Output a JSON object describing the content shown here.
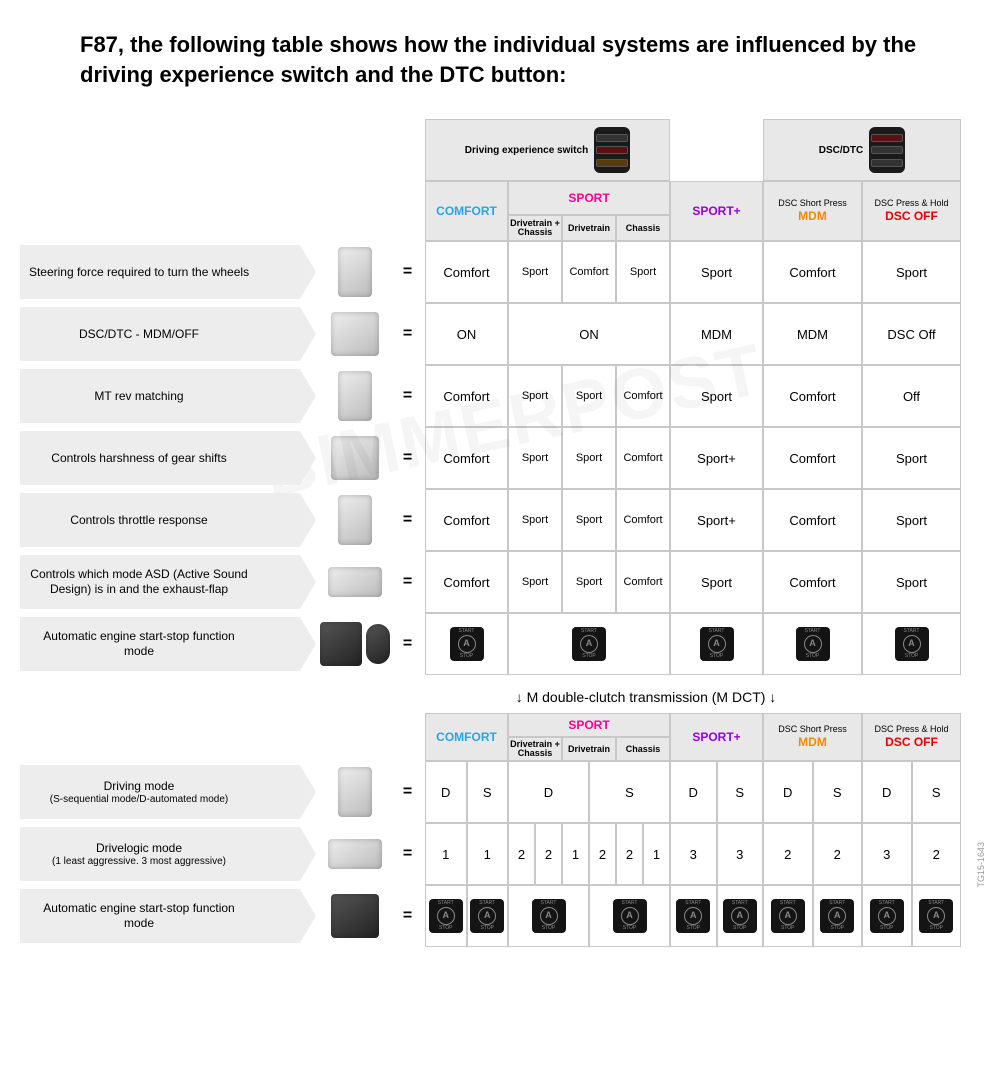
{
  "title": "F87, the following table shows how the individual systems are influenced by the driving experience switch and the DTC button:",
  "headers": {
    "switch1": "Driving experience switch",
    "switch2": "DSC/DTC",
    "comfort": "COMFORT",
    "sport": "SPORT",
    "sportplus": "SPORT+",
    "mdm_sup": "DSC Short Press",
    "mdm": "MDM",
    "dscoff_sup": "DSC Press & Hold",
    "dscoff": "DSC OFF",
    "sub_dc": "Drivetrain + Chassis",
    "sub_d": "Drivetrain",
    "sub_c": "Chassis"
  },
  "colors": {
    "comfort": "#2aa3e8",
    "sport": "#ff0095",
    "sportplus": "#9a00d8",
    "mdm": "#f08a00",
    "dscoff": "#e80000"
  },
  "rows1": [
    {
      "label": "Steering force required to turn the wheels",
      "cells": {
        "comfort": "Comfort",
        "s1": "Sport",
        "s2": "Comfort",
        "s3": "Sport",
        "sportplus": "Sport",
        "mdm": "Comfort",
        "dscoff": "Sport"
      }
    },
    {
      "label": "DSC/DTC - MDM/OFF",
      "cells": {
        "comfort": "ON",
        "sport_merged": "ON",
        "sportplus": "MDM",
        "mdm": "MDM",
        "dscoff": "DSC Off"
      }
    },
    {
      "label": "MT rev matching",
      "cells": {
        "comfort": "Comfort",
        "s1": "Sport",
        "s2": "Sport",
        "s3": "Comfort",
        "sportplus": "Sport",
        "mdm": "Comfort",
        "dscoff": "Off"
      }
    },
    {
      "label": "Controls harshness of gear shifts",
      "cells": {
        "comfort": "Comfort",
        "s1": "Sport",
        "s2": "Sport",
        "s3": "Comfort",
        "sportplus": "Sport+",
        "mdm": "Comfort",
        "dscoff": "Sport"
      }
    },
    {
      "label": "Controls throttle response",
      "cells": {
        "comfort": "Comfort",
        "s1": "Sport",
        "s2": "Sport",
        "s3": "Comfort",
        "sportplus": "Sport+",
        "mdm": "Comfort",
        "dscoff": "Sport"
      }
    },
    {
      "label": "Controls which mode ASD (Active Sound Design) is in and the exhaust-flap",
      "cells": {
        "comfort": "Comfort",
        "s1": "Sport",
        "s2": "Sport",
        "s3": "Comfort",
        "sportplus": "Sport",
        "mdm": "Comfort",
        "dscoff": "Sport"
      }
    },
    {
      "label": "Automatic engine start-stop function mode",
      "stopRow": true
    }
  ],
  "between": "↓ M double-clutch transmission (M DCT) ↓",
  "rows2": [
    {
      "label": "Driving mode",
      "sub": "(S-sequential mode/D-automated mode)",
      "type": "ds",
      "cells": {
        "c1": "D",
        "c2": "S",
        "sportL": "D",
        "sportR": "S",
        "sp1": "D",
        "sp2": "S",
        "m1": "D",
        "m2": "S",
        "o1": "D",
        "o2": "S"
      }
    },
    {
      "label": "Drivelogic mode",
      "sub": "(1 least aggressive. 3 most aggressive)",
      "type": "dl",
      "cells": {
        "c1": "1",
        "c2": "1",
        "a": "2",
        "b": "2",
        "c": "1",
        "d": "2",
        "e": "2",
        "f": "1",
        "sp1": "3",
        "sp2": "3",
        "m1": "2",
        "m2": "2",
        "o1": "3",
        "o2": "2"
      }
    },
    {
      "label": "Automatic engine start-stop function mode",
      "type": "stop"
    }
  ],
  "stopIcon": {
    "top": "START",
    "mid": "A",
    "bot": "STOP"
  },
  "watermark": "BIMMERPOST",
  "sidecode": "TG15-1643"
}
